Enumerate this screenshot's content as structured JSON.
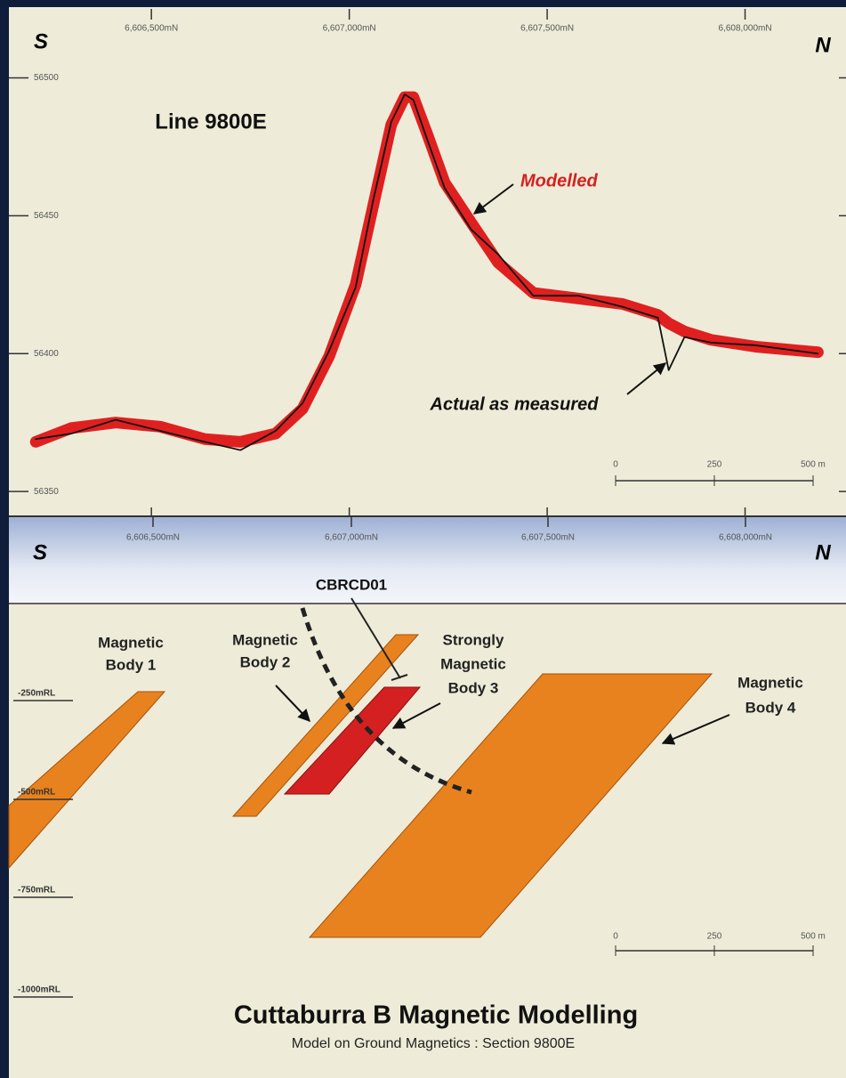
{
  "chart_data": {
    "type": "line",
    "title": "Line 9800E",
    "left_label": "S",
    "right_label": "N",
    "annotations": [
      "Modelled",
      "Actual as measured"
    ],
    "scale_bar": [
      "0",
      "250",
      "500 m"
    ],
    "x": [
      6606208,
      6606298,
      6606410,
      6606522,
      6606635,
      6606725,
      6606814,
      6606882,
      6606949,
      6607016,
      6607061,
      6607106,
      6607140,
      6607162,
      6607196,
      6607241,
      6607308,
      6607376,
      6607465,
      6607578,
      6607690,
      6607780,
      6607807,
      6607847,
      6607914,
      6608027,
      6608184
    ],
    "series": [
      {
        "name": "Modelled",
        "color": "#e02020",
        "values": [
          56368,
          56373,
          56375,
          56373.5,
          56369,
          56368,
          56371,
          56380,
          56399,
          56425,
          56454,
          56483,
          56493,
          56493,
          56480,
          56462,
          56447.5,
          56433,
          56422,
          56420,
          56418,
          56414,
          56411,
          56408,
          56405,
          56402.5,
          56400.5
        ]
      },
      {
        "name": "Actual as measured",
        "color": "#111111",
        "values": [
          56369,
          56371,
          56376,
          56372,
          56368,
          56365,
          56372,
          56382,
          56401,
          56424,
          56456,
          56484,
          56494,
          56492,
          56478,
          56460,
          56445,
          56436,
          56421,
          56421,
          56417,
          56413,
          56394,
          56406,
          56404,
          56403,
          56400
        ]
      }
    ],
    "xlim": [
      6606140,
      6608255
    ],
    "ylim": [
      56341,
      56525
    ],
    "xticks": [
      {
        "value": 6606500,
        "label": "6,606,500mN"
      },
      {
        "value": 6607000,
        "label": "6,607,000mN"
      },
      {
        "value": 6607500,
        "label": "6,607,500mN"
      },
      {
        "value": 6608000,
        "label": "6,608,000mN"
      }
    ],
    "yticks": [
      56350,
      56400,
      56450,
      56500
    ]
  },
  "section": {
    "left_label": "S",
    "right_label": "N",
    "xtick_labels": [
      "6,606,500mN",
      "6,607,000mN",
      "6,607,500mN",
      "6,608,000mN"
    ],
    "drillhole": "CBRCD01",
    "bodies": [
      [
        "Magnetic",
        "Body 1"
      ],
      [
        "Magnetic",
        "Body 2"
      ],
      [
        "Strongly",
        "Magnetic",
        "Body 3"
      ],
      [
        "Magnetic",
        "Body 4"
      ]
    ],
    "rl_labels": [
      "-250mRL",
      "-500mRL",
      "-750mRL",
      "-1000mRL"
    ],
    "scale_bar": [
      "0",
      "250",
      "500 m"
    ],
    "title": "Cuttaburra B  Magnetic Modelling",
    "subtitle": "Model on Ground Magnetics : Section 9800E"
  }
}
